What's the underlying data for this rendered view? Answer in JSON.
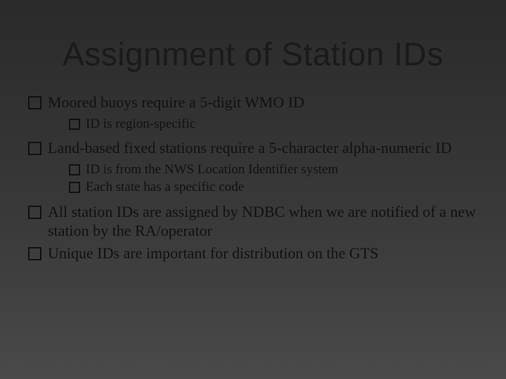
{
  "slide": {
    "title": "Assignment of Station IDs",
    "title_fontsize": 46,
    "title_font": "Segoe UI Light",
    "body_font": "Georgia",
    "body_fontsize_top": 22,
    "body_fontsize_sub": 19,
    "background_gradient": [
      "#2a2a2a",
      "#3a3a3a",
      "#4a4a4a"
    ],
    "swoosh_line_color": "rgba(255,255,255,0.35)",
    "swoosh_accent_color": "rgba(200,200,80,0.35)",
    "bullet_box_border": "#111111",
    "text_color": "#111111",
    "bullets": [
      {
        "text": "Moored buoys require a 5-digit WMO ID",
        "sub": [
          {
            "text": "ID is region-specific"
          }
        ]
      },
      {
        "text": "Land-based fixed stations require a 5-character alpha-numeric ID",
        "sub": [
          {
            "text": "ID is from the NWS Location Identifier system"
          },
          {
            "text": "Each state has a specific code"
          }
        ]
      },
      {
        "text": "All station IDs are assigned by NDBC when we are notified of a new station by the RA/operator",
        "sub": []
      },
      {
        "text": "Unique IDs are important for distribution on the GTS",
        "sub": []
      }
    ]
  }
}
